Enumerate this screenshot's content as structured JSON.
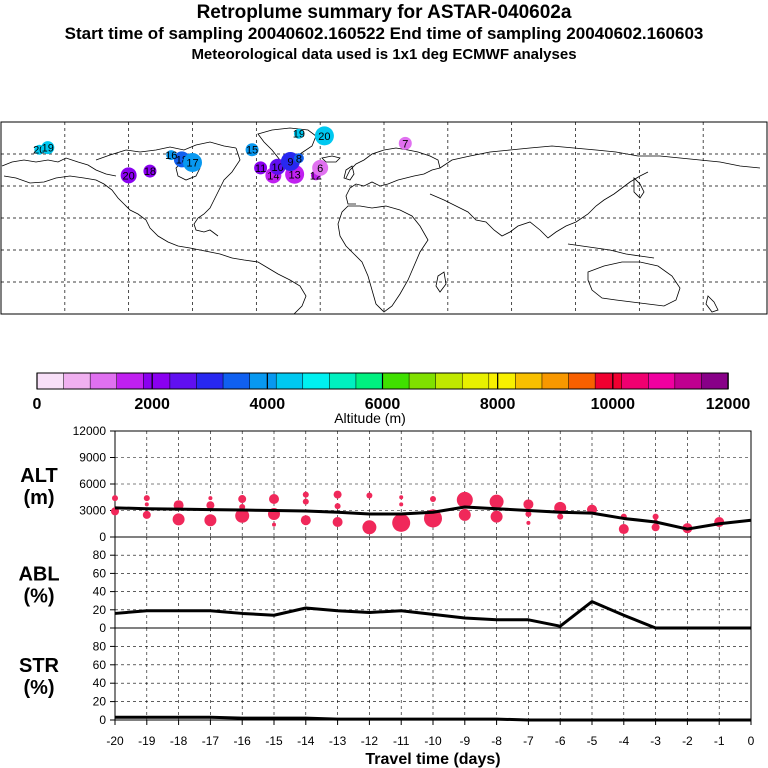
{
  "header": {
    "title": "Retroplume summary for ASTAR-040602a",
    "line2": "Start time of sampling 20040602.160522     End time of sampling 20040602.160603",
    "line3": "Meteorological data used is 1x1 deg ECMWF analyses"
  },
  "map": {
    "description_label": "world-map",
    "clusters": [
      {
        "label": "20",
        "lon": -162,
        "lat": 64,
        "alt": 4300
      },
      {
        "label": "19",
        "lon": -158,
        "lat": 66,
        "alt": 4200
      },
      {
        "label": "18",
        "lon": -95,
        "lat": 55,
        "alt": 3600
      },
      {
        "label": "17",
        "lon": -90,
        "lat": 52,
        "alt": 3900
      },
      {
        "label": "16",
        "lon": -100,
        "lat": 59,
        "alt": 3700
      },
      {
        "label": "15",
        "lon": -62,
        "lat": 64,
        "alt": 3900
      },
      {
        "label": "14",
        "lon": -52,
        "lat": 40,
        "alt": 1800
      },
      {
        "label": "13",
        "lon": -42,
        "lat": 41,
        "alt": 1600
      },
      {
        "label": "12",
        "lon": -32,
        "lat": 40,
        "alt": 1400
      },
      {
        "label": "11",
        "lon": -58,
        "lat": 47,
        "alt": 2200
      },
      {
        "label": "10",
        "lon": -50,
        "lat": 48,
        "alt": 2500
      },
      {
        "label": "9",
        "lon": -44,
        "lat": 53,
        "alt": 2800
      },
      {
        "label": "8",
        "lon": -40,
        "lat": 56,
        "alt": 3400
      },
      {
        "label": "7",
        "lon": 10,
        "lat": 70,
        "alt": 1200
      },
      {
        "label": "6",
        "lon": -30,
        "lat": 47,
        "alt": 1000
      },
      {
        "label": "20",
        "lon": -28,
        "lat": 77,
        "alt": 4400
      },
      {
        "label": "19",
        "lon": -40,
        "lat": 79,
        "alt": 4200
      },
      {
        "label": "18",
        "lon": -110,
        "lat": 44,
        "alt": 1900
      },
      {
        "label": "20",
        "lon": -120,
        "lat": 40,
        "alt": 2100
      }
    ]
  },
  "colorbar": {
    "label": "Altitude (m)",
    "tick_labels": [
      "0",
      "2000",
      "4000",
      "6000",
      "8000",
      "10000",
      "12000"
    ],
    "colors": [
      "#f8e0f8",
      "#f0b0f0",
      "#e070f0",
      "#c020f0",
      "#8a00f0",
      "#6010f0",
      "#2828f0",
      "#1060f0",
      "#0898f0",
      "#00c8f0",
      "#00f0f0",
      "#00f0c0",
      "#00f080",
      "#40e000",
      "#80e000",
      "#c0e800",
      "#e8f000",
      "#f8f000",
      "#f8c000",
      "#f89800",
      "#f86000",
      "#f00030",
      "#f00070",
      "#f000a0",
      "#c00090",
      "#880088"
    ]
  },
  "chart_data": [
    {
      "type": "line",
      "name": "ALT",
      "ylabel": "ALT (m)",
      "ylabel_top": "ALT",
      "ylabel_unit": "(m)",
      "xlabel": "Travel time (days)",
      "ylim": [
        0,
        12000
      ],
      "yticks": [
        "0",
        "3000",
        "6000",
        "9000",
        "12000"
      ],
      "xlim": [
        -20,
        0
      ],
      "xticks": [
        "-20",
        "-19",
        "-18",
        "-17",
        "-16",
        "-15",
        "-14",
        "-13",
        "-12",
        "-11",
        "-10",
        "-9",
        "-8",
        "-7",
        "-6",
        "-5",
        "-4",
        "-3",
        "-2",
        "-1",
        "0"
      ],
      "series": [
        {
          "name": "mean altitude",
          "x": [
            -20,
            -19,
            -18,
            -17,
            -16,
            -15,
            -14,
            -13,
            -12,
            -11,
            -10,
            -9,
            -8,
            -7,
            -6,
            -5,
            -4,
            -3,
            -2,
            -1,
            0
          ],
          "values": [
            3300,
            3200,
            3150,
            3100,
            3050,
            3000,
            2950,
            2800,
            2600,
            2600,
            2800,
            3400,
            3200,
            3000,
            2800,
            2700,
            2100,
            1700,
            900,
            1500,
            1900
          ]
        }
      ],
      "clusters": [
        {
          "x": -20,
          "y": 4400,
          "size": 3
        },
        {
          "x": -20,
          "y": 2900,
          "size": 4
        },
        {
          "x": -19,
          "y": 4400,
          "size": 3
        },
        {
          "x": -19,
          "y": 3700,
          "size": 2
        },
        {
          "x": -19,
          "y": 2500,
          "size": 4
        },
        {
          "x": -18,
          "y": 3600,
          "size": 5
        },
        {
          "x": -18,
          "y": 2000,
          "size": 6
        },
        {
          "x": -17,
          "y": 4400,
          "size": 2
        },
        {
          "x": -17,
          "y": 3600,
          "size": 4
        },
        {
          "x": -17,
          "y": 1900,
          "size": 6
        },
        {
          "x": -16,
          "y": 4300,
          "size": 4
        },
        {
          "x": -16,
          "y": 3400,
          "size": 3
        },
        {
          "x": -16,
          "y": 2400,
          "size": 7
        },
        {
          "x": -15,
          "y": 4300,
          "size": 5
        },
        {
          "x": -15,
          "y": 2600,
          "size": 6
        },
        {
          "x": -15,
          "y": 1400,
          "size": 2
        },
        {
          "x": -14,
          "y": 4800,
          "size": 3
        },
        {
          "x": -14,
          "y": 4000,
          "size": 3
        },
        {
          "x": -14,
          "y": 1900,
          "size": 5
        },
        {
          "x": -13,
          "y": 4800,
          "size": 4
        },
        {
          "x": -13,
          "y": 3500,
          "size": 3
        },
        {
          "x": -13,
          "y": 1700,
          "size": 5
        },
        {
          "x": -12,
          "y": 4700,
          "size": 3
        },
        {
          "x": -12,
          "y": 1100,
          "size": 7
        },
        {
          "x": -11,
          "y": 4500,
          "size": 2
        },
        {
          "x": -11,
          "y": 3700,
          "size": 2
        },
        {
          "x": -11,
          "y": 1600,
          "size": 9
        },
        {
          "x": -10,
          "y": 4300,
          "size": 3
        },
        {
          "x": -10,
          "y": 2100,
          "size": 9
        },
        {
          "x": -9,
          "y": 4200,
          "size": 8
        },
        {
          "x": -9,
          "y": 2500,
          "size": 6
        },
        {
          "x": -8,
          "y": 4000,
          "size": 7
        },
        {
          "x": -8,
          "y": 2300,
          "size": 6
        },
        {
          "x": -7,
          "y": 3700,
          "size": 5
        },
        {
          "x": -7,
          "y": 2600,
          "size": 3
        },
        {
          "x": -7,
          "y": 1600,
          "size": 2
        },
        {
          "x": -6,
          "y": 3300,
          "size": 6
        },
        {
          "x": -6,
          "y": 2300,
          "size": 3
        },
        {
          "x": -5,
          "y": 3100,
          "size": 5
        },
        {
          "x": -4,
          "y": 2300,
          "size": 3
        },
        {
          "x": -4,
          "y": 900,
          "size": 5
        },
        {
          "x": -3,
          "y": 2300,
          "size": 3
        },
        {
          "x": -3,
          "y": 1800,
          "size": 2
        },
        {
          "x": -3,
          "y": 1100,
          "size": 4
        },
        {
          "x": -2,
          "y": 1000,
          "size": 5
        },
        {
          "x": -1,
          "y": 1700,
          "size": 5
        }
      ]
    },
    {
      "type": "line",
      "name": "ABL",
      "ylabel": "ABL (%)",
      "ylabel_top": "ABL",
      "ylabel_unit": "(%)",
      "ylim": [
        0,
        100
      ],
      "yticks": [
        "0",
        "20",
        "40",
        "60",
        "80"
      ],
      "xlim": [
        -20,
        0
      ],
      "series": [
        {
          "name": "fraction in ABL",
          "x": [
            -20,
            -19,
            -18,
            -17,
            -16,
            -15,
            -14,
            -13,
            -12,
            -11,
            -10,
            -9,
            -8,
            -7,
            -6,
            -5,
            -4,
            -3,
            -2,
            -1,
            0
          ],
          "values": [
            16,
            19,
            19,
            19,
            16,
            14,
            22,
            19,
            17,
            19,
            15,
            11,
            9,
            9,
            2,
            29,
            14,
            0,
            0,
            0,
            0
          ]
        }
      ]
    },
    {
      "type": "line",
      "name": "STR",
      "ylabel": "STR (%)",
      "ylabel_top": "STR",
      "ylabel_unit": "(%)",
      "ylim": [
        0,
        100
      ],
      "yticks": [
        "0",
        "20",
        "40",
        "60",
        "80"
      ],
      "xlim": [
        -20,
        0
      ],
      "series": [
        {
          "name": "fraction in stratosphere",
          "x": [
            -20,
            -19,
            -18,
            -17,
            -16,
            -15,
            -14,
            -13,
            -12,
            -11,
            -10,
            -9,
            -8,
            -7,
            -6,
            -5,
            -4,
            -3,
            -2,
            -1,
            0
          ],
          "values": [
            3,
            3,
            3,
            3,
            2,
            2,
            2,
            1,
            1,
            1,
            1,
            1,
            1,
            0,
            0,
            0,
            0,
            0,
            0,
            0,
            0
          ]
        }
      ]
    }
  ]
}
